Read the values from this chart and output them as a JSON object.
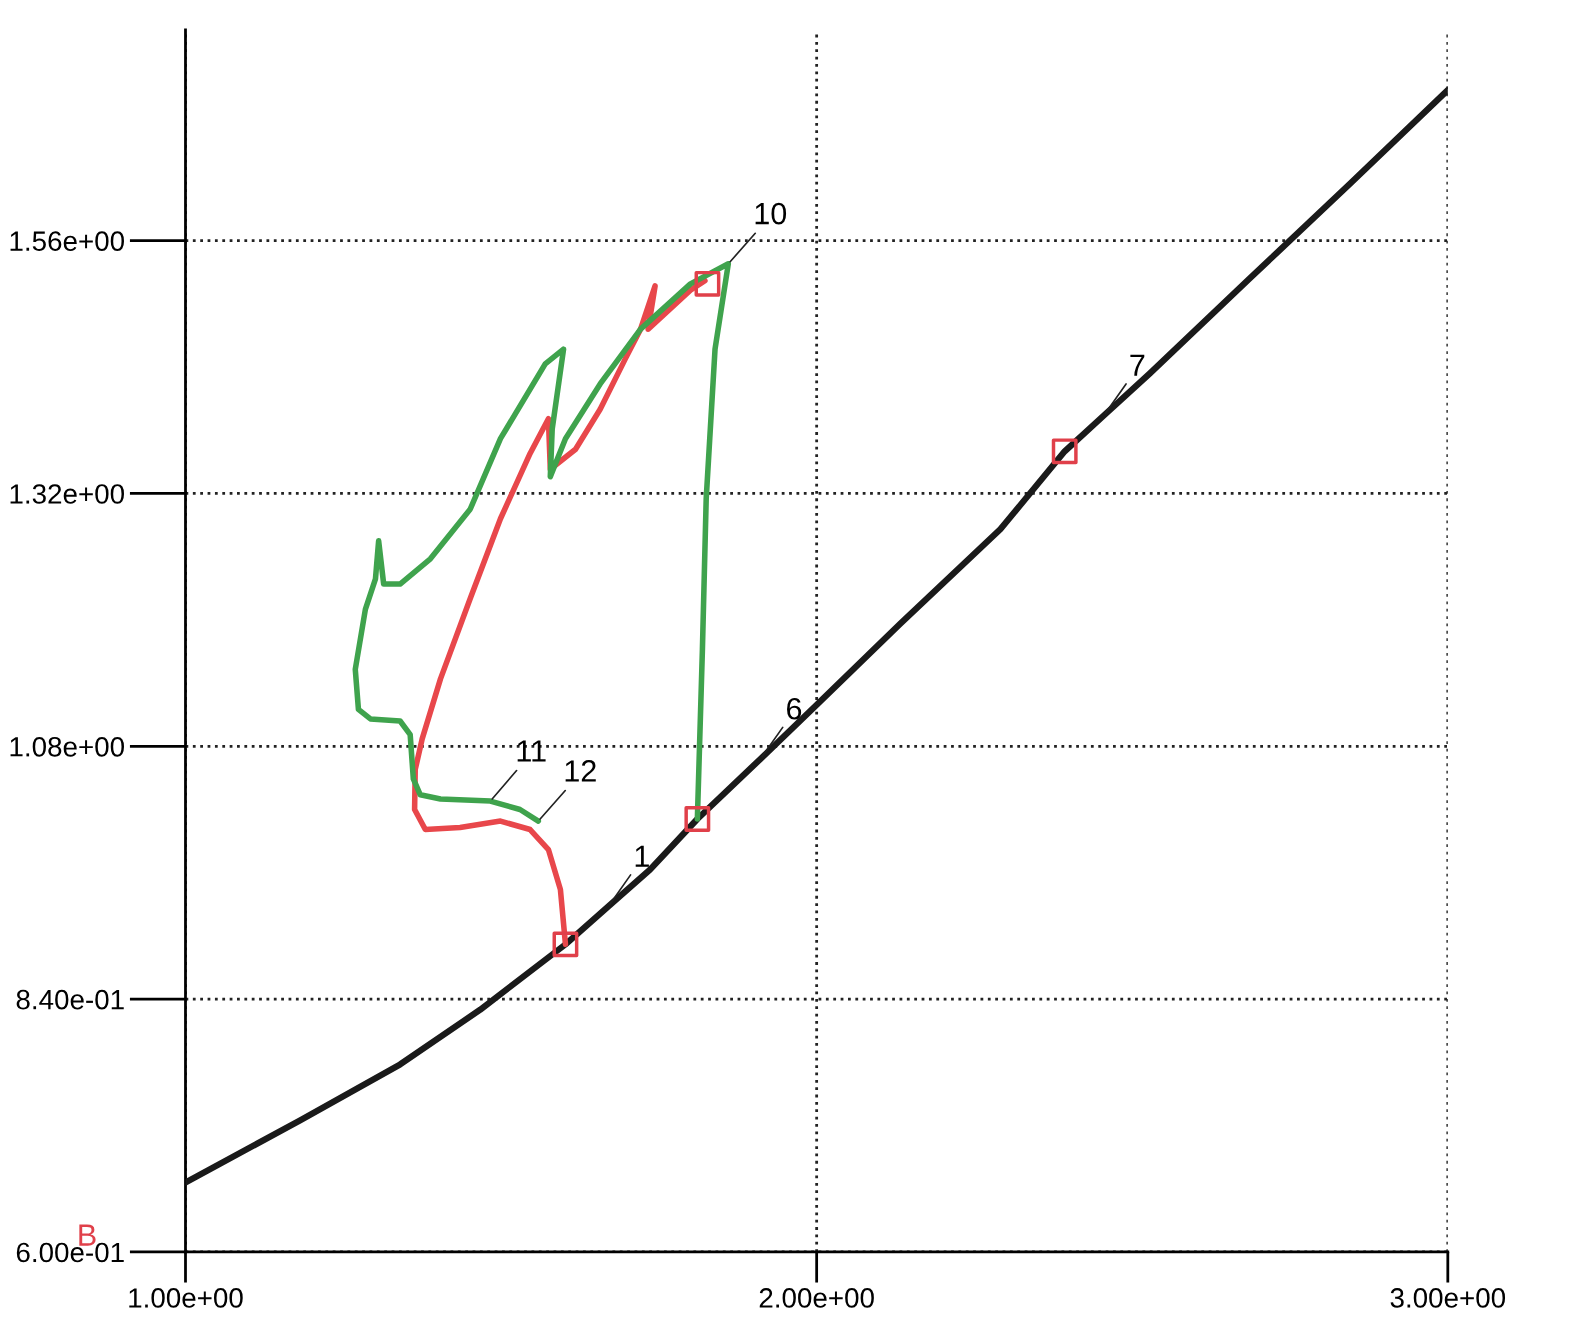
{
  "chart_data": {
    "type": "line",
    "xlim": [
      1,
      3
    ],
    "ylim": [
      0.6,
      1.76
    ],
    "xticks": [
      {
        "value": 1,
        "label": "1.00e+00"
      },
      {
        "value": 2,
        "label": "2.00e+00"
      },
      {
        "value": 3,
        "label": "3.00e+00"
      }
    ],
    "yticks": [
      {
        "value": 0.6,
        "label": "6.00e-01"
      },
      {
        "value": 0.84,
        "label": "8.40e-01"
      },
      {
        "value": 1.08,
        "label": "1.08e+00"
      },
      {
        "value": 1.32,
        "label": "1.32e+00"
      },
      {
        "value": 1.56,
        "label": "1.56e+00"
      }
    ],
    "grid": true,
    "legend": false,
    "series": [
      {
        "color": "#1a1a1a",
        "x": [
          1.0,
          1.182,
          1.34,
          1.467,
          1.602,
          1.67,
          1.736,
          1.811,
          1.911,
          2.001,
          2.132,
          2.291,
          2.393,
          2.455,
          2.528,
          2.686,
          2.845,
          3.0
        ],
        "values": [
          0.666,
          0.725,
          0.778,
          0.83,
          0.892,
          0.928,
          0.963,
          1.011,
          1.068,
          1.12,
          1.196,
          1.286,
          1.36,
          1.394,
          1.434,
          1.524,
          1.614,
          1.703
        ]
      },
      {
        "color": "#e8474b",
        "x": [
          1.602,
          1.594,
          1.575,
          1.546,
          1.499,
          1.435,
          1.38,
          1.363,
          1.364,
          1.375,
          1.404,
          1.451,
          1.499,
          1.546,
          1.575,
          1.578,
          1.618,
          1.657,
          1.697,
          1.721,
          1.744,
          1.733,
          1.8,
          1.823
        ],
        "values": [
          0.892,
          0.944,
          0.982,
          1.001,
          1.009,
          1.003,
          1.001,
          1.02,
          1.058,
          1.087,
          1.144,
          1.22,
          1.296,
          1.358,
          1.391,
          1.343,
          1.362,
          1.4,
          1.448,
          1.476,
          1.517,
          1.476,
          1.513,
          1.522
        ]
      },
      {
        "color": "#3fa34d",
        "x": [
          1.811,
          1.819,
          1.825,
          1.839,
          1.86,
          1.8,
          1.721,
          1.657,
          1.602,
          1.578,
          1.581,
          1.599,
          1.57,
          1.499,
          1.451,
          1.388,
          1.34,
          1.314,
          1.306,
          1.301,
          1.285,
          1.269,
          1.274,
          1.293,
          1.34,
          1.356,
          1.361,
          1.372,
          1.404,
          1.483,
          1.53,
          1.559
        ],
        "values": [
          1.011,
          1.172,
          1.315,
          1.457,
          1.538,
          1.519,
          1.476,
          1.424,
          1.372,
          1.336,
          1.381,
          1.457,
          1.443,
          1.372,
          1.305,
          1.258,
          1.234,
          1.234,
          1.275,
          1.239,
          1.21,
          1.153,
          1.115,
          1.106,
          1.104,
          1.091,
          1.049,
          1.034,
          1.03,
          1.028,
          1.02,
          1.009
        ]
      },
      {
        "type": "scatter",
        "marker": "square",
        "color": "#e0404a",
        "x": [
          1.827,
          1.811,
          2.393,
          1.602
        ],
        "values": [
          1.519,
          1.011,
          1.36,
          0.892
        ]
      }
    ],
    "annotations": [
      {
        "text": "10",
        "x": 1.86,
        "y": 1.538
      },
      {
        "text": "11",
        "x": 1.483,
        "y": 1.028
      },
      {
        "text": "12",
        "x": 1.559,
        "y": 1.009
      },
      {
        "text": "6",
        "x": 1.911,
        "y": 1.068
      },
      {
        "text": "7",
        "x": 2.455,
        "y": 1.394
      },
      {
        "text": "1",
        "x": 1.67,
        "y": 0.928
      },
      "B"
    ]
  }
}
